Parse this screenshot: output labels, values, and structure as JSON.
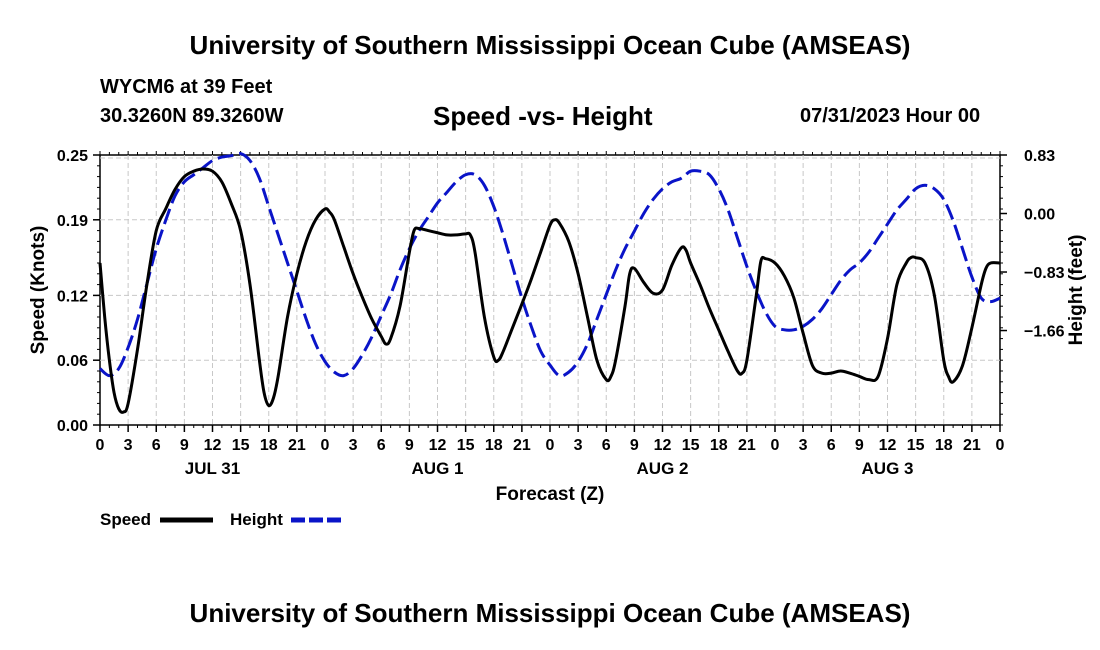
{
  "header": {
    "title": "University of Southern Mississippi Ocean Cube (AMSEAS)",
    "station": "WYCM6 at 39 Feet",
    "coords": "30.3260N  89.3260W",
    "subtitle": "Speed -vs- Height",
    "datetime": "07/31/2023 Hour 00"
  },
  "footer": {
    "title": "University of Southern Mississippi Ocean Cube (AMSEAS)"
  },
  "chart_data": {
    "type": "line",
    "xlabel": "Forecast (Z)",
    "ylabel_left": "Speed (Knots)",
    "ylabel_right": "Height (feet)",
    "x_range_hours": [
      0,
      96
    ],
    "x_tick_hours": [
      0,
      3,
      6,
      9,
      12,
      15,
      18,
      21,
      24,
      27,
      30,
      33,
      36,
      39,
      42,
      45,
      48,
      51,
      54,
      57,
      60,
      63,
      66,
      69,
      72,
      75,
      78,
      81,
      84,
      87,
      90,
      93,
      96
    ],
    "x_tick_labels": [
      "0",
      "3",
      "6",
      "9",
      "12",
      "15",
      "18",
      "21",
      "0",
      "3",
      "6",
      "9",
      "12",
      "15",
      "18",
      "21",
      "0",
      "3",
      "6",
      "9",
      "12",
      "15",
      "18",
      "21",
      "0",
      "3",
      "6",
      "9",
      "12",
      "15",
      "18",
      "21",
      "0"
    ],
    "day_labels": [
      {
        "hour": 12,
        "label": "JUL 31"
      },
      {
        "hour": 36,
        "label": "AUG 1"
      },
      {
        "hour": 60,
        "label": "AUG 2"
      },
      {
        "hour": 84,
        "label": "AUG 3"
      }
    ],
    "y_left": {
      "range": [
        0,
        0.25
      ],
      "ticks": [
        0.0,
        0.06,
        0.12,
        0.19,
        0.25
      ],
      "tick_labels": [
        "0.00",
        "0.06",
        "0.12",
        "0.19",
        "0.25"
      ]
    },
    "y_right": {
      "range": [
        -3.0,
        0.83
      ],
      "ticks": [
        0.83,
        0.0,
        -0.83,
        -1.66
      ],
      "tick_labels": [
        "0.83",
        "0.00",
        "−0.83",
        "−1.66"
      ]
    },
    "grid": true,
    "series": [
      {
        "name": "Speed",
        "axis": "left",
        "color": "#000000",
        "dash": "solid",
        "points": [
          [
            0,
            0.15
          ],
          [
            0.5,
            0.1
          ],
          [
            1,
            0.06
          ],
          [
            1.5,
            0.03
          ],
          [
            2,
            0.015
          ],
          [
            2.5,
            0.012
          ],
          [
            3,
            0.02
          ],
          [
            4,
            0.07
          ],
          [
            5,
            0.13
          ],
          [
            6,
            0.18
          ],
          [
            7,
            0.2
          ],
          [
            8,
            0.218
          ],
          [
            9,
            0.23
          ],
          [
            10,
            0.235
          ],
          [
            11,
            0.237
          ],
          [
            12,
            0.235
          ],
          [
            13,
            0.225
          ],
          [
            14,
            0.205
          ],
          [
            15,
            0.18
          ],
          [
            16,
            0.13
          ],
          [
            17,
            0.06
          ],
          [
            17.5,
            0.03
          ],
          [
            18,
            0.018
          ],
          [
            18.5,
            0.025
          ],
          [
            19,
            0.045
          ],
          [
            20,
            0.1
          ],
          [
            21,
            0.14
          ],
          [
            22,
            0.17
          ],
          [
            23,
            0.19
          ],
          [
            24,
            0.2
          ],
          [
            24.5,
            0.197
          ],
          [
            25,
            0.19
          ],
          [
            26,
            0.165
          ],
          [
            27,
            0.14
          ],
          [
            28,
            0.118
          ],
          [
            29,
            0.098
          ],
          [
            30,
            0.082
          ],
          [
            30.5,
            0.075
          ],
          [
            31,
            0.08
          ],
          [
            32,
            0.11
          ],
          [
            33,
            0.16
          ],
          [
            33.5,
            0.18
          ],
          [
            34,
            0.182
          ],
          [
            35,
            0.18
          ],
          [
            36,
            0.178
          ],
          [
            37,
            0.176
          ],
          [
            38,
            0.176
          ],
          [
            39,
            0.177
          ],
          [
            39.5,
            0.176
          ],
          [
            40,
            0.16
          ],
          [
            41,
            0.1
          ],
          [
            42,
            0.063
          ],
          [
            42.5,
            0.06
          ],
          [
            43,
            0.068
          ],
          [
            44,
            0.09
          ],
          [
            45,
            0.112
          ],
          [
            46,
            0.135
          ],
          [
            47,
            0.16
          ],
          [
            48,
            0.185
          ],
          [
            48.5,
            0.19
          ],
          [
            49,
            0.187
          ],
          [
            50,
            0.17
          ],
          [
            51,
            0.14
          ],
          [
            52,
            0.1
          ],
          [
            53,
            0.06
          ],
          [
            54,
            0.042
          ],
          [
            54.5,
            0.045
          ],
          [
            55,
            0.06
          ],
          [
            56,
            0.11
          ],
          [
            56.5,
            0.14
          ],
          [
            57,
            0.145
          ],
          [
            58,
            0.132
          ],
          [
            59,
            0.122
          ],
          [
            60,
            0.125
          ],
          [
            61,
            0.148
          ],
          [
            62,
            0.164
          ],
          [
            62.5,
            0.162
          ],
          [
            63,
            0.15
          ],
          [
            64,
            0.13
          ],
          [
            65,
            0.108
          ],
          [
            66,
            0.088
          ],
          [
            67,
            0.068
          ],
          [
            68,
            0.05
          ],
          [
            68.5,
            0.048
          ],
          [
            69,
            0.06
          ],
          [
            70,
            0.12
          ],
          [
            70.5,
            0.152
          ],
          [
            71,
            0.154
          ],
          [
            72,
            0.15
          ],
          [
            73,
            0.138
          ],
          [
            74,
            0.118
          ],
          [
            75,
            0.085
          ],
          [
            76,
            0.055
          ],
          [
            77,
            0.048
          ],
          [
            78,
            0.048
          ],
          [
            79,
            0.05
          ],
          [
            80,
            0.048
          ],
          [
            81,
            0.045
          ],
          [
            82,
            0.042
          ],
          [
            83,
            0.045
          ],
          [
            84,
            0.08
          ],
          [
            85,
            0.13
          ],
          [
            86,
            0.15
          ],
          [
            86.5,
            0.155
          ],
          [
            87,
            0.155
          ],
          [
            88,
            0.15
          ],
          [
            89,
            0.12
          ],
          [
            90,
            0.06
          ],
          [
            90.5,
            0.045
          ],
          [
            91,
            0.04
          ],
          [
            92,
            0.055
          ],
          [
            93,
            0.09
          ],
          [
            94,
            0.13
          ],
          [
            94.5,
            0.145
          ],
          [
            95,
            0.15
          ],
          [
            96,
            0.15
          ]
        ]
      },
      {
        "name": "Height",
        "axis": "right",
        "color": "#0a14c8",
        "dash": "dashed",
        "points": [
          [
            0,
            -2.2
          ],
          [
            1,
            -2.3
          ],
          [
            2,
            -2.2
          ],
          [
            3,
            -1.9
          ],
          [
            4,
            -1.5
          ],
          [
            5,
            -1.0
          ],
          [
            6,
            -0.5
          ],
          [
            7,
            -0.1
          ],
          [
            8,
            0.25
          ],
          [
            9,
            0.45
          ],
          [
            10,
            0.55
          ],
          [
            11,
            0.65
          ],
          [
            12,
            0.75
          ],
          [
            13,
            0.8
          ],
          [
            14,
            0.82
          ],
          [
            15,
            0.85
          ],
          [
            16,
            0.75
          ],
          [
            17,
            0.5
          ],
          [
            18,
            0.1
          ],
          [
            19,
            -0.3
          ],
          [
            20,
            -0.7
          ],
          [
            21,
            -1.1
          ],
          [
            22,
            -1.5
          ],
          [
            23,
            -1.85
          ],
          [
            24,
            -2.1
          ],
          [
            25,
            -2.25
          ],
          [
            26,
            -2.3
          ],
          [
            27,
            -2.2
          ],
          [
            28,
            -2.0
          ],
          [
            29,
            -1.75
          ],
          [
            30,
            -1.45
          ],
          [
            31,
            -1.15
          ],
          [
            32,
            -0.8
          ],
          [
            33,
            -0.5
          ],
          [
            34,
            -0.25
          ],
          [
            35,
            -0.05
          ],
          [
            36,
            0.15
          ],
          [
            37,
            0.3
          ],
          [
            38,
            0.45
          ],
          [
            39,
            0.55
          ],
          [
            40,
            0.55
          ],
          [
            41,
            0.4
          ],
          [
            42,
            0.1
          ],
          [
            43,
            -0.3
          ],
          [
            44,
            -0.75
          ],
          [
            45,
            -1.2
          ],
          [
            46,
            -1.6
          ],
          [
            47,
            -1.95
          ],
          [
            48,
            -2.15
          ],
          [
            49,
            -2.3
          ],
          [
            50,
            -2.25
          ],
          [
            51,
            -2.1
          ],
          [
            52,
            -1.85
          ],
          [
            53,
            -1.5
          ],
          [
            54,
            -1.15
          ],
          [
            55,
            -0.8
          ],
          [
            56,
            -0.5
          ],
          [
            57,
            -0.25
          ],
          [
            58,
            0.0
          ],
          [
            59,
            0.2
          ],
          [
            60,
            0.35
          ],
          [
            61,
            0.45
          ],
          [
            62,
            0.5
          ],
          [
            63,
            0.6
          ],
          [
            64,
            0.6
          ],
          [
            65,
            0.55
          ],
          [
            66,
            0.35
          ],
          [
            67,
            0.05
          ],
          [
            68,
            -0.35
          ],
          [
            69,
            -0.75
          ],
          [
            70,
            -1.1
          ],
          [
            71,
            -1.4
          ],
          [
            72,
            -1.6
          ],
          [
            73,
            -1.65
          ],
          [
            74,
            -1.65
          ],
          [
            75,
            -1.6
          ],
          [
            76,
            -1.5
          ],
          [
            77,
            -1.35
          ],
          [
            78,
            -1.15
          ],
          [
            79,
            -0.95
          ],
          [
            80,
            -0.8
          ],
          [
            81,
            -0.7
          ],
          [
            82,
            -0.55
          ],
          [
            83,
            -0.35
          ],
          [
            84,
            -0.15
          ],
          [
            85,
            0.05
          ],
          [
            86,
            0.2
          ],
          [
            87,
            0.35
          ],
          [
            88,
            0.4
          ],
          [
            89,
            0.35
          ],
          [
            90,
            0.2
          ],
          [
            91,
            -0.1
          ],
          [
            92,
            -0.5
          ],
          [
            93,
            -0.9
          ],
          [
            94,
            -1.2
          ],
          [
            95,
            -1.25
          ],
          [
            96,
            -1.2
          ]
        ]
      }
    ],
    "legend": {
      "position": "bottom-left",
      "items": [
        "Speed",
        "Height"
      ]
    }
  }
}
